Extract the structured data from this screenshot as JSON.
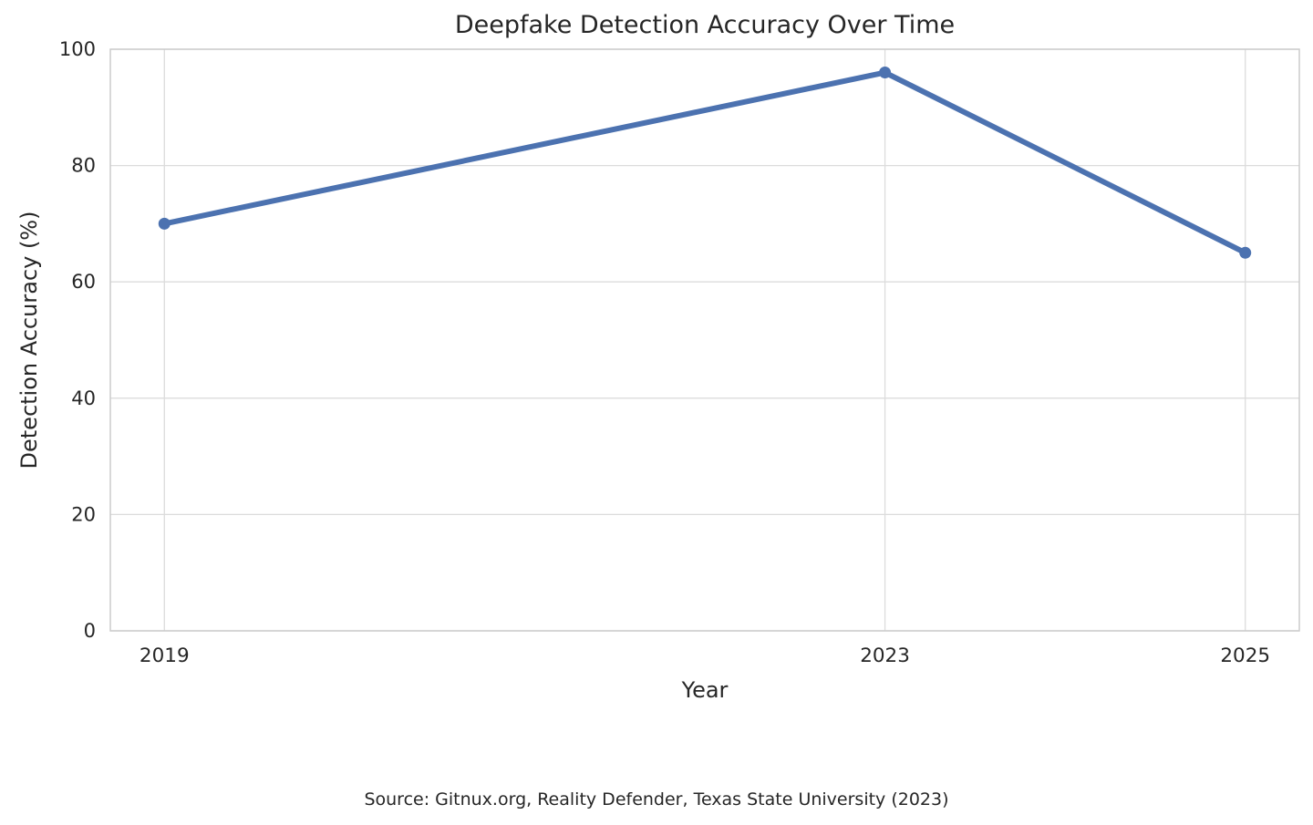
{
  "chart_data": {
    "type": "line",
    "title": "Deepfake Detection Accuracy Over Time",
    "xlabel": "Year",
    "ylabel": "Detection Accuracy (%)",
    "x": [
      2019,
      2023,
      2025
    ],
    "values": [
      70,
      96,
      65
    ],
    "series_name": "Detection Accuracy (%)",
    "xticks": [
      2019,
      2023,
      2025
    ],
    "yticks": [
      0,
      20,
      40,
      60,
      80,
      100
    ],
    "xlim": [
      2018.7,
      2025.3
    ],
    "ylim": [
      0,
      100
    ],
    "grid": true,
    "legend": false,
    "annotation": "Source: Gitnux.org, Reality Defender, Texas State University (2023)",
    "line_color": "#4C72B0",
    "marker_color": "#4C72B0",
    "grid_color": "#dcdcdc",
    "spine_color": "#cccccc",
    "text_color": "#262626"
  }
}
